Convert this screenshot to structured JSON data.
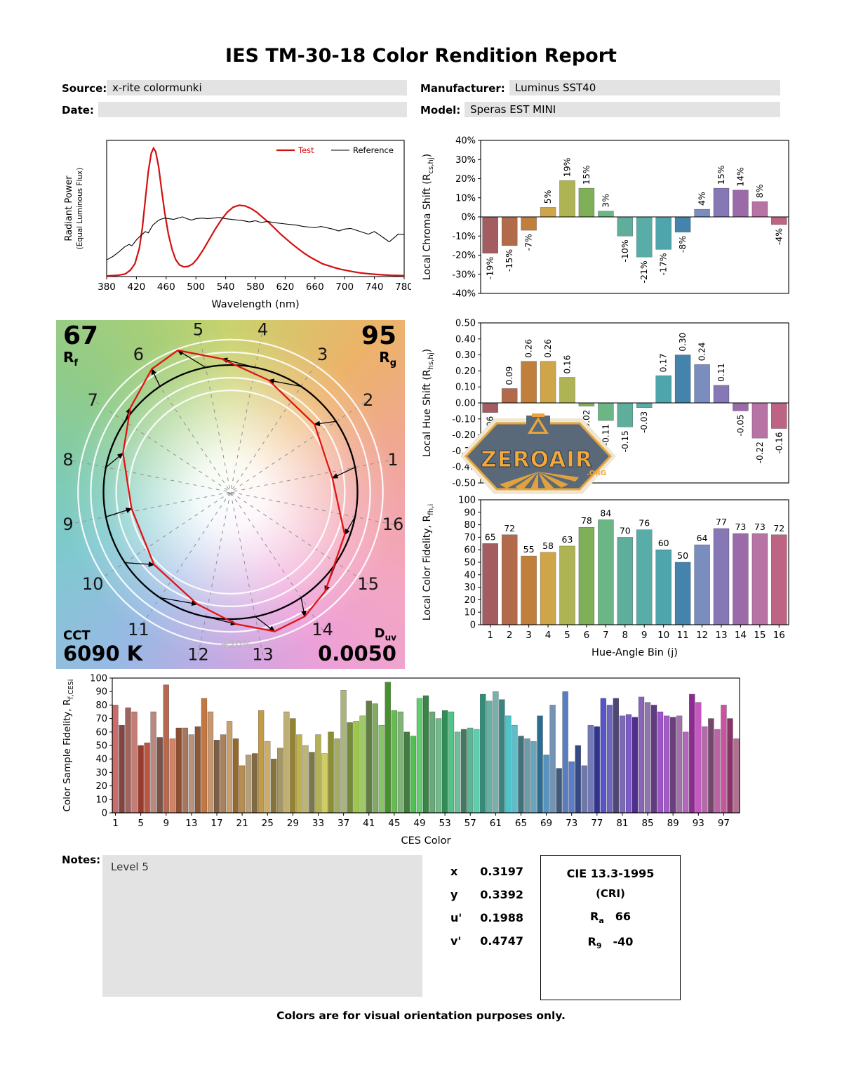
{
  "title": "IES TM-30-18 Color Rendition Report",
  "header": {
    "source_label": "Source:",
    "source_value": "x-rite colormunki",
    "manufacturer_label": "Manufacturer:",
    "manufacturer_value": "Luminus SST40",
    "date_label": "Date:",
    "date_value": "",
    "model_label": "Model:",
    "model_value": "Speras EST MINI"
  },
  "watermark": {
    "name": "ZEROAIR",
    "org": ".ORG"
  },
  "hue_bin_colors": [
    "#a35c60",
    "#b16a4a",
    "#c0803b",
    "#cfa54a",
    "#aeb354",
    "#7fb058",
    "#6cb585",
    "#5fae9c",
    "#58ada9",
    "#4fa5ac",
    "#4484ac",
    "#7b8cbf",
    "#8578b4",
    "#9a6ba8",
    "#b773a3",
    "#bd6484"
  ],
  "cvg": {
    "rf_value": "67",
    "rf_base": "R",
    "rf_sub": "f",
    "rg_value": "95",
    "rg_base": "R",
    "rg_sub": "g",
    "cct_label": "CCT",
    "cct_value": "6090 K",
    "duv_base": "D",
    "duv_sub": "uv",
    "duv_value": "0.0050",
    "ring_label": "+20%",
    "bin_numbers": [
      "1",
      "2",
      "3",
      "4",
      "5",
      "6",
      "7",
      "8",
      "9",
      "10",
      "11",
      "12",
      "13",
      "14",
      "15",
      "16"
    ]
  },
  "chart_data": [
    {
      "id": "spd",
      "type": "line",
      "xlabel": "Wavelength (nm)",
      "ylabel1": "Radiant Power",
      "ylabel2": "(Equal Luminous Flux)",
      "xlim": [
        380,
        780
      ],
      "ylim": [
        0,
        1.06
      ],
      "xticks": [
        380,
        420,
        460,
        500,
        540,
        580,
        620,
        660,
        700,
        740,
        780
      ],
      "series": [
        {
          "name": "Test",
          "color": "#d40f0f",
          "width": 2.2,
          "points": [
            [
              380,
              0.005
            ],
            [
              395,
              0.01
            ],
            [
              405,
              0.02
            ],
            [
              412,
              0.05
            ],
            [
              418,
              0.1
            ],
            [
              424,
              0.22
            ],
            [
              428,
              0.38
            ],
            [
              432,
              0.6
            ],
            [
              436,
              0.82
            ],
            [
              440,
              0.96
            ],
            [
              443,
              1.0
            ],
            [
              446,
              0.97
            ],
            [
              450,
              0.85
            ],
            [
              454,
              0.67
            ],
            [
              458,
              0.5
            ],
            [
              463,
              0.33
            ],
            [
              468,
              0.21
            ],
            [
              473,
              0.13
            ],
            [
              478,
              0.09
            ],
            [
              484,
              0.075
            ],
            [
              490,
              0.08
            ],
            [
              496,
              0.1
            ],
            [
              502,
              0.14
            ],
            [
              510,
              0.21
            ],
            [
              518,
              0.29
            ],
            [
              526,
              0.37
            ],
            [
              534,
              0.44
            ],
            [
              542,
              0.5
            ],
            [
              550,
              0.54
            ],
            [
              558,
              0.555
            ],
            [
              566,
              0.55
            ],
            [
              574,
              0.53
            ],
            [
              582,
              0.5
            ],
            [
              590,
              0.46
            ],
            [
              598,
              0.42
            ],
            [
              606,
              0.375
            ],
            [
              614,
              0.33
            ],
            [
              622,
              0.29
            ],
            [
              630,
              0.25
            ],
            [
              638,
              0.215
            ],
            [
              646,
              0.18
            ],
            [
              654,
              0.15
            ],
            [
              662,
              0.125
            ],
            [
              670,
              0.1
            ],
            [
              678,
              0.085
            ],
            [
              686,
              0.07
            ],
            [
              694,
              0.058
            ],
            [
              702,
              0.048
            ],
            [
              712,
              0.037
            ],
            [
              722,
              0.028
            ],
            [
              732,
              0.022
            ],
            [
              742,
              0.017
            ],
            [
              752,
              0.013
            ],
            [
              762,
              0.01
            ],
            [
              772,
              0.008
            ],
            [
              780,
              0.007
            ]
          ]
        },
        {
          "name": "Reference",
          "color": "#000000",
          "width": 1.1,
          "points": [
            [
              380,
              0.13
            ],
            [
              388,
              0.155
            ],
            [
              396,
              0.19
            ],
            [
              404,
              0.23
            ],
            [
              410,
              0.25
            ],
            [
              414,
              0.24
            ],
            [
              420,
              0.285
            ],
            [
              426,
              0.32
            ],
            [
              432,
              0.35
            ],
            [
              436,
              0.34
            ],
            [
              442,
              0.4
            ],
            [
              448,
              0.43
            ],
            [
              452,
              0.445
            ],
            [
              458,
              0.455
            ],
            [
              464,
              0.45
            ],
            [
              470,
              0.445
            ],
            [
              476,
              0.455
            ],
            [
              482,
              0.465
            ],
            [
              488,
              0.45
            ],
            [
              494,
              0.44
            ],
            [
              500,
              0.45
            ],
            [
              508,
              0.455
            ],
            [
              516,
              0.45
            ],
            [
              524,
              0.455
            ],
            [
              532,
              0.46
            ],
            [
              540,
              0.45
            ],
            [
              548,
              0.445
            ],
            [
              556,
              0.44
            ],
            [
              564,
              0.435
            ],
            [
              572,
              0.425
            ],
            [
              580,
              0.435
            ],
            [
              588,
              0.42
            ],
            [
              596,
              0.43
            ],
            [
              604,
              0.42
            ],
            [
              612,
              0.415
            ],
            [
              620,
              0.41
            ],
            [
              628,
              0.405
            ],
            [
              636,
              0.4
            ],
            [
              644,
              0.39
            ],
            [
              652,
              0.385
            ],
            [
              660,
              0.38
            ],
            [
              668,
              0.39
            ],
            [
              676,
              0.38
            ],
            [
              684,
              0.37
            ],
            [
              692,
              0.355
            ],
            [
              700,
              0.37
            ],
            [
              708,
              0.375
            ],
            [
              716,
              0.36
            ],
            [
              724,
              0.345
            ],
            [
              732,
              0.33
            ],
            [
              740,
              0.35
            ],
            [
              748,
              0.32
            ],
            [
              754,
              0.295
            ],
            [
              760,
              0.27
            ],
            [
              766,
              0.3
            ],
            [
              772,
              0.33
            ],
            [
              780,
              0.325
            ]
          ]
        }
      ]
    },
    {
      "id": "chroma_shift",
      "type": "bar",
      "ylabel": "Local Chroma Shift (R_{cs,hj})",
      "ylim": [
        -40,
        40
      ],
      "yticks": [
        {
          "v": 40,
          "label": "40%"
        },
        {
          "v": 30,
          "label": "30%"
        },
        {
          "v": 20,
          "label": "20%"
        },
        {
          "v": 10,
          "label": "10%"
        },
        {
          "v": 0,
          "label": "0%"
        },
        {
          "v": -10,
          "label": "-10%"
        },
        {
          "v": -20,
          "label": "-20%"
        },
        {
          "v": -30,
          "label": "-30%"
        },
        {
          "v": -40,
          "label": "-40%"
        }
      ],
      "values": [
        -19,
        -15,
        -7,
        5,
        19,
        15,
        3,
        -10,
        -21,
        -17,
        -8,
        4,
        15,
        14,
        8,
        -4
      ],
      "bar_labels": [
        "-19%",
        "-15%",
        "-7%",
        "5%",
        "19%",
        "15%",
        "3%",
        "-10%",
        "-21%",
        "-17%",
        "-8%",
        "4%",
        "15%",
        "14%",
        "8%",
        "-4%"
      ]
    },
    {
      "id": "hue_shift",
      "type": "bar",
      "ylabel": "Local Hue Shift (R_{hs,hj})",
      "ylim": [
        -0.5,
        0.5
      ],
      "yticks": [
        {
          "v": 0.5,
          "label": "0.50"
        },
        {
          "v": 0.4,
          "label": "0.40"
        },
        {
          "v": 0.3,
          "label": "0.30"
        },
        {
          "v": 0.2,
          "label": "0.20"
        },
        {
          "v": 0.1,
          "label": "0.10"
        },
        {
          "v": 0,
          "label": "0.00"
        },
        {
          "v": -0.1,
          "label": "-0.10"
        },
        {
          "v": -0.2,
          "label": "-0.20"
        },
        {
          "v": -0.3,
          "label": "-0.30"
        },
        {
          "v": -0.4,
          "label": "-0.40"
        },
        {
          "v": -0.5,
          "label": "-0.50"
        }
      ],
      "values": [
        -0.06,
        0.09,
        0.26,
        0.26,
        0.16,
        -0.02,
        -0.11,
        -0.15,
        -0.03,
        0.17,
        0.3,
        0.24,
        0.11,
        -0.05,
        -0.22,
        -0.16
      ],
      "bar_labels": [
        "-0.06",
        "0.09",
        "0.26",
        "0.26",
        "0.16",
        "-0.02",
        "-0.11",
        "-0.15",
        "-0.03",
        "0.17",
        "0.30",
        "0.24",
        "0.11",
        "-0.05",
        "-0.22",
        "-0.16"
      ]
    },
    {
      "id": "local_fidelity",
      "type": "bar",
      "ylabel": "Local Color Fidelity, R_{fh,i}",
      "xlabel": "Hue-Angle Bin (j)",
      "ylim": [
        0,
        100
      ],
      "yticks": [
        {
          "v": 100,
          "label": "100"
        },
        {
          "v": 90,
          "label": "90"
        },
        {
          "v": 80,
          "label": "80"
        },
        {
          "v": 70,
          "label": "70"
        },
        {
          "v": 60,
          "label": "60"
        },
        {
          "v": 50,
          "label": "50"
        },
        {
          "v": 40,
          "label": "40"
        },
        {
          "v": 30,
          "label": "30"
        },
        {
          "v": 20,
          "label": "20"
        },
        {
          "v": 10,
          "label": "10"
        },
        {
          "v": 0,
          "label": "0"
        }
      ],
      "values": [
        65,
        72,
        55,
        58,
        63,
        78,
        84,
        70,
        76,
        60,
        50,
        64,
        77,
        73,
        73,
        72
      ],
      "bar_labels": [
        "65",
        "72",
        "55",
        "58",
        "63",
        "78",
        "84",
        "70",
        "76",
        "60",
        "50",
        "64",
        "77",
        "73",
        "73",
        "72"
      ],
      "xtick_idx": [
        0,
        1,
        2,
        3,
        4,
        5,
        6,
        7,
        8,
        9,
        10,
        11,
        12,
        13,
        14,
        15
      ],
      "xtick_labels": [
        "1",
        "2",
        "3",
        "4",
        "5",
        "6",
        "7",
        "8",
        "9",
        "10",
        "11",
        "12",
        "13",
        "14",
        "15",
        "16"
      ]
    },
    {
      "id": "ces",
      "type": "bar",
      "ylabel": "Color Sample Fidelity, R_{f,CESi}",
      "xlabel": "CES Color",
      "ylim": [
        0,
        100
      ],
      "yticks": [
        {
          "v": 100,
          "label": "100"
        },
        {
          "v": 90,
          "label": "90"
        },
        {
          "v": 80,
          "label": "80"
        },
        {
          "v": 70,
          "label": "70"
        },
        {
          "v": 60,
          "label": "60"
        },
        {
          "v": 50,
          "label": "50"
        },
        {
          "v": 40,
          "label": "40"
        },
        {
          "v": 30,
          "label": "30"
        },
        {
          "v": 20,
          "label": "20"
        },
        {
          "v": 10,
          "label": "10"
        },
        {
          "v": 0,
          "label": "0"
        }
      ],
      "values": [
        80,
        65,
        78,
        75,
        50,
        52,
        75,
        56,
        95,
        55,
        63,
        63,
        58,
        64,
        85,
        75,
        54,
        58,
        68,
        55,
        35,
        43,
        44,
        76,
        53,
        40,
        48,
        75,
        70,
        58,
        50,
        45,
        58,
        44,
        60,
        55,
        91,
        67,
        68,
        72,
        83,
        81,
        65,
        97,
        76,
        75,
        60,
        57,
        85,
        87,
        75,
        70,
        76,
        75,
        60,
        62,
        63,
        62,
        88,
        83,
        90,
        84,
        72,
        65,
        57,
        55,
        53,
        72,
        43,
        80,
        33,
        90,
        38,
        50,
        35,
        65,
        64,
        85,
        80,
        85,
        72,
        73,
        71,
        86,
        82,
        80,
        75,
        72,
        71,
        72,
        60,
        88,
        82,
        64,
        70,
        62,
        80,
        70,
        55
      ],
      "xtick_idx": [
        0,
        4,
        8,
        12,
        16,
        20,
        24,
        28,
        32,
        36,
        40,
        44,
        48,
        52,
        56,
        60,
        64,
        68,
        72,
        76,
        80,
        84,
        88,
        92,
        96
      ],
      "xtick_labels": [
        "1",
        "5",
        "9",
        "13",
        "17",
        "21",
        "25",
        "29",
        "33",
        "37",
        "41",
        "45",
        "49",
        "53",
        "57",
        "61",
        "65",
        "69",
        "73",
        "77",
        "81",
        "85",
        "89",
        "93",
        "97"
      ]
    }
  ],
  "notes": {
    "label": "Notes:",
    "content": "Level 5"
  },
  "chromaticity": {
    "rows": [
      {
        "label": "x",
        "value": "0.3197"
      },
      {
        "label": "y",
        "value": "0.3392"
      },
      {
        "label": "u'",
        "value": "0.1988"
      },
      {
        "label": "v'",
        "value": "0.4747"
      }
    ]
  },
  "cri": {
    "title": "CIE 13.3-1995",
    "subtitle": "(CRI)",
    "ra_base": "R",
    "ra_sub": "a",
    "ra_value": "66",
    "r9_base": "R",
    "r9_sub": "9",
    "r9_value": "-40"
  },
  "footer": "Colors are for visual orientation purposes only."
}
